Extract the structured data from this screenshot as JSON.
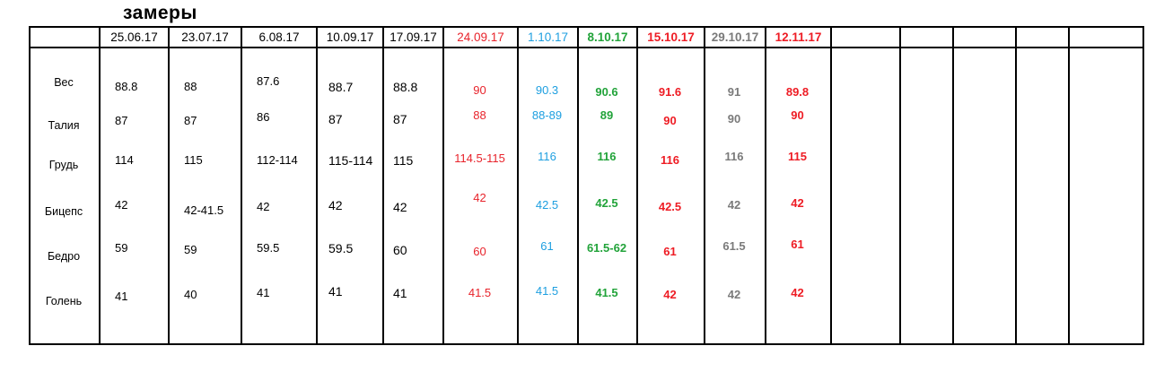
{
  "title": "замеры",
  "colors": {
    "black": "#000000",
    "red": "#e8232b",
    "blue": "#1e9fe0",
    "green": "#22a33a",
    "bright_red": "#ee1c24",
    "gray": "#7a7a7a"
  },
  "table": {
    "row_labels": [
      "Вес",
      "Талия",
      "Грудь",
      "Бицепс",
      "Бедро",
      "Голень"
    ],
    "columns": [
      {
        "date": "25.06.17",
        "color": "black",
        "bold": false,
        "values": [
          "88.8",
          "87",
          "114",
          "42",
          "59",
          "41"
        ]
      },
      {
        "date": "23.07.17",
        "color": "black",
        "bold": false,
        "values": [
          "88",
          "87",
          "115",
          "42-41.5",
          "59",
          "40"
        ]
      },
      {
        "date": "6.08.17",
        "color": "black",
        "bold": false,
        "values": [
          "87.6",
          "86",
          "112-114",
          "42",
          "59.5",
          "41"
        ]
      },
      {
        "date": "10.09.17",
        "color": "black",
        "bold": false,
        "values": [
          "88.7",
          "87",
          "115-114",
          "42",
          "59.5",
          "41"
        ]
      },
      {
        "date": "17.09.17",
        "color": "black",
        "bold": false,
        "values": [
          "88.8",
          "87",
          "115",
          "42",
          "60",
          "41"
        ]
      },
      {
        "date": "24.09.17",
        "color": "red",
        "bold": false,
        "values": [
          "90",
          "88",
          "114.5-115",
          "42",
          "60",
          "41.5"
        ]
      },
      {
        "date": "1.10.17",
        "color": "blue",
        "bold": false,
        "values": [
          "90.3",
          "88-89",
          "116",
          "42.5",
          "61",
          "41.5"
        ]
      },
      {
        "date": "8.10.17",
        "color": "green",
        "bold": true,
        "values": [
          "90.6",
          "89",
          "116",
          "42.5",
          "61.5-62",
          "41.5"
        ]
      },
      {
        "date": "15.10.17",
        "color": "bright_red",
        "bold": true,
        "values": [
          "91.6",
          "90",
          "116",
          "42.5",
          "61",
          "42"
        ]
      },
      {
        "date": "29.10.17",
        "color": "gray",
        "bold": true,
        "values": [
          "91",
          "90",
          "116",
          "42",
          "61.5",
          "42"
        ]
      },
      {
        "date": "12.11.17",
        "color": "bright_red",
        "bold": true,
        "values": [
          "89.8",
          "90",
          "115",
          "42",
          "61",
          "42"
        ]
      }
    ],
    "empty_columns": 5
  }
}
